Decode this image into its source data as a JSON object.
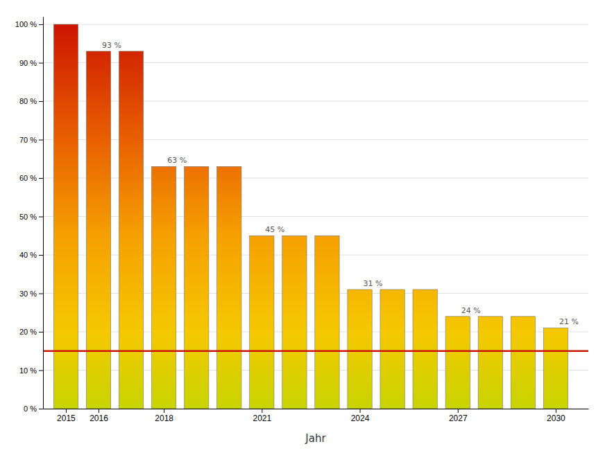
{
  "chart_data": {
    "type": "bar",
    "xlabel": "Jahr",
    "x": [
      2015,
      2016,
      2017,
      2018,
      2019,
      2020,
      2021,
      2022,
      2023,
      2024,
      2025,
      2026,
      2027,
      2028,
      2029,
      2030
    ],
    "values": [
      100,
      93,
      93,
      63,
      63,
      63,
      45,
      45,
      45,
      31,
      31,
      31,
      24,
      24,
      24,
      21
    ],
    "data_labels": true,
    "value_labels": [
      null,
      "93 %",
      null,
      "63 %",
      null,
      null,
      "45 %",
      null,
      null,
      "31 %",
      null,
      null,
      "24 %",
      null,
      null,
      "21 %"
    ],
    "xlim": [
      2014.3,
      2031.0
    ],
    "xticks": [
      2015,
      2016,
      2018,
      2021,
      2024,
      2027,
      2030
    ],
    "ylim": [
      0,
      102
    ],
    "yticks": [
      {
        "value": 0,
        "label": "0 %"
      },
      {
        "value": 10,
        "label": "10 %"
      },
      {
        "value": 20,
        "label": "20 %"
      },
      {
        "value": 30,
        "label": "30 %"
      },
      {
        "value": 40,
        "label": "40 %"
      },
      {
        "value": 50,
        "label": "50 %"
      },
      {
        "value": 60,
        "label": "60 %"
      },
      {
        "value": 70,
        "label": "70 %"
      },
      {
        "value": 80,
        "label": "80 %"
      },
      {
        "value": 90,
        "label": "90 %"
      },
      {
        "value": 100,
        "label": "100 %"
      }
    ],
    "grid": true,
    "hlines": [
      {
        "value": 15,
        "color": "#cc1500"
      }
    ],
    "colormap": {
      "range": [
        0,
        100
      ],
      "positions": [
        0.0,
        0.2,
        0.45,
        0.7,
        1.0
      ],
      "colors": [
        "#c8d400",
        "#f5c800",
        "#f5a000",
        "#e86000",
        "#cc1500"
      ]
    }
  }
}
